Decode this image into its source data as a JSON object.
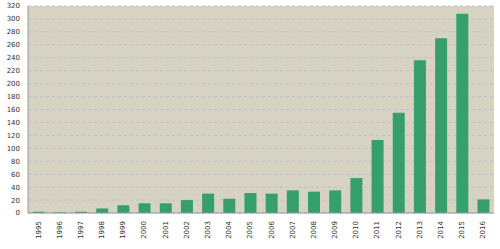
{
  "chart_data": {
    "type": "bar",
    "categories": [
      "1995",
      "1996",
      "1997",
      "1998",
      "1999",
      "2000",
      "2001",
      "2002",
      "2003",
      "2004",
      "2005",
      "2006",
      "2007",
      "2008",
      "2009",
      "2010",
      "2011",
      "2012",
      "2013",
      "2014",
      "2015",
      "2016"
    ],
    "values": [
      2,
      1,
      2,
      7,
      12,
      15,
      15,
      20,
      30,
      22,
      31,
      30,
      35,
      33,
      35,
      54,
      113,
      155,
      236,
      270,
      308,
      21
    ],
    "color": "#35a06c",
    "ylim": [
      0,
      320
    ],
    "yticks": [
      0,
      20,
      40,
      60,
      80,
      100,
      120,
      140,
      160,
      180,
      200,
      220,
      240,
      260,
      280,
      300,
      320
    ],
    "grid": true
  }
}
